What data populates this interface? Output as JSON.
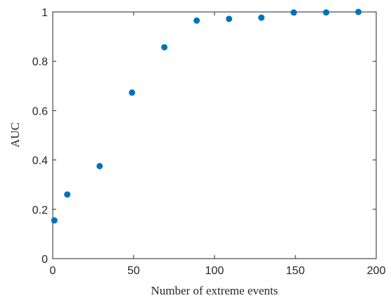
{
  "chart_data": {
    "type": "scatter",
    "xlabel": "Number of extreme events",
    "ylabel": "AUC",
    "xlim": [
      0,
      200
    ],
    "ylim": [
      0,
      1
    ],
    "xticks": [
      0,
      50,
      100,
      150,
      200
    ],
    "xtick_labels": [
      "0",
      "50",
      "100",
      "150",
      "200"
    ],
    "yticks": [
      0,
      0.2,
      0.4,
      0.6,
      0.8,
      1
    ],
    "ytick_labels": [
      "0",
      "0.2",
      "0.4",
      "0.6",
      "0.8",
      "1"
    ],
    "grid": false,
    "box": true,
    "marker_color": "#0072BD",
    "series": [
      {
        "x": [
          1,
          9,
          29,
          49,
          69,
          89,
          109,
          129,
          149,
          169,
          189
        ],
        "y": [
          0.155,
          0.26,
          0.375,
          0.673,
          0.857,
          0.965,
          0.972,
          0.977,
          0.998,
          0.998,
          1.0
        ]
      }
    ]
  }
}
